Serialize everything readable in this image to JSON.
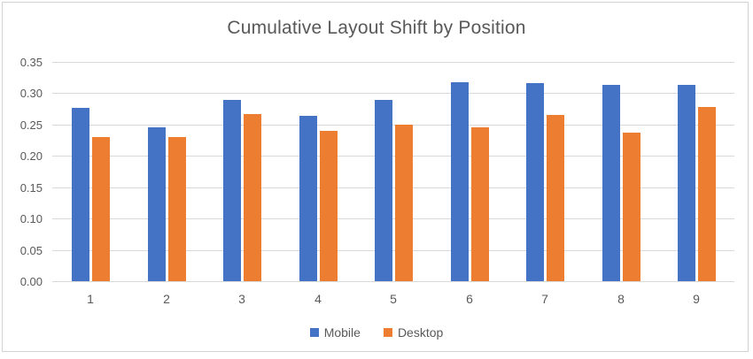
{
  "chart_data": {
    "type": "bar",
    "title": "Cumulative Layout Shift by Position",
    "categories": [
      "1",
      "2",
      "3",
      "4",
      "5",
      "6",
      "7",
      "8",
      "9"
    ],
    "series": [
      {
        "name": "Mobile",
        "color": "#4472C4",
        "values": [
          0.277,
          0.246,
          0.29,
          0.264,
          0.289,
          0.317,
          0.316,
          0.314,
          0.313
        ]
      },
      {
        "name": "Desktop",
        "color": "#ED7D31",
        "values": [
          0.23,
          0.23,
          0.267,
          0.24,
          0.25,
          0.246,
          0.265,
          0.237,
          0.278
        ]
      }
    ],
    "xlabel": "",
    "ylabel": "",
    "ylim": [
      0,
      0.35
    ],
    "ytick_step": 0.05,
    "ytick_labels": [
      "0.35",
      "0.30",
      "0.25",
      "0.20",
      "0.15",
      "0.10",
      "0.05",
      "0.00"
    ],
    "grid": true,
    "gridline_color": "#d9d9d9",
    "text_color": "#595959",
    "legend_position": "bottom-center"
  }
}
